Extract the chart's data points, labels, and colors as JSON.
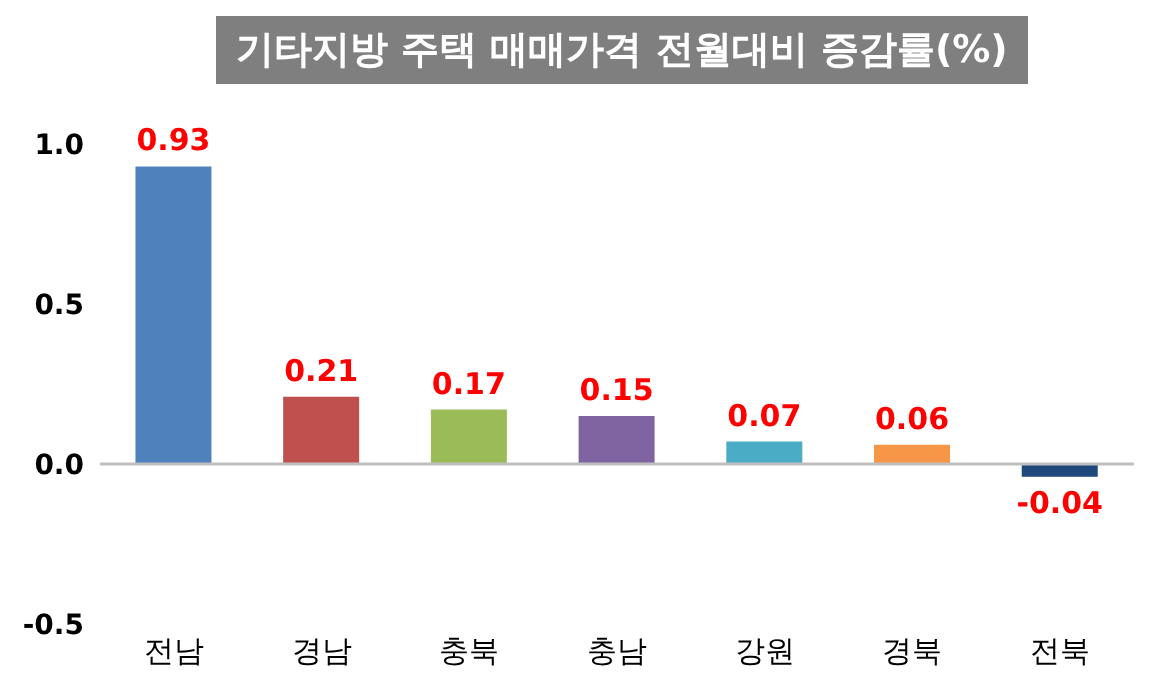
{
  "chart_data": {
    "type": "bar",
    "title": "기타지방 주택 매매가격 전월대비 증감률(%)",
    "categories": [
      "전남",
      "경남",
      "충북",
      "충남",
      "강원",
      "경북",
      "전북"
    ],
    "values": [
      0.93,
      0.21,
      0.17,
      0.15,
      0.07,
      0.06,
      -0.04
    ],
    "colors": [
      "#4f81bd",
      "#c0504d",
      "#9bbb59",
      "#8064a2",
      "#4bacc6",
      "#f79646",
      "#1f497d"
    ],
    "ylim": [
      -0.5,
      1.0
    ],
    "yticks": [
      {
        "value": -0.5,
        "label": "-0.5"
      },
      {
        "value": 0,
        "label": "0.0"
      },
      {
        "value": 0.5,
        "label": "0.5"
      },
      {
        "value": 1,
        "label": "1.0"
      }
    ],
    "ref_lines": [
      {
        "axis": "y",
        "value": 0,
        "color": "#bfbfbf"
      }
    ],
    "data_labels": true
  }
}
